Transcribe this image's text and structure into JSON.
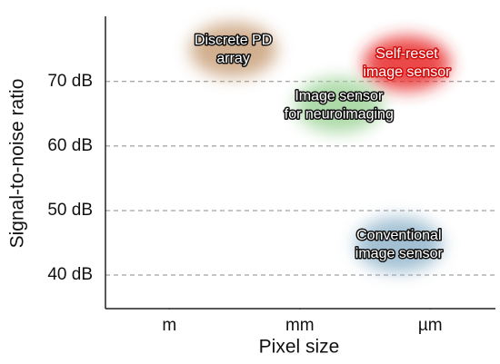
{
  "chart_data": {
    "type": "scatter",
    "x_label": "Pixel size",
    "y_label": "Signal-to-noise ratio",
    "xlim": [
      -0.49,
      2.5
    ],
    "ylim": [
      34.8,
      80.1
    ],
    "xticks": [
      {
        "value": 0,
        "label": "m"
      },
      {
        "value": 1,
        "label": "mm"
      },
      {
        "value": 2,
        "label": "µm"
      }
    ],
    "yticks": [
      {
        "value": 40,
        "label": "40 dB"
      },
      {
        "value": 50,
        "label": "50 dB"
      },
      {
        "value": 60,
        "label": "60 dB"
      },
      {
        "value": 70,
        "label": "70 dB"
      }
    ],
    "grid": true,
    "points": [
      {
        "label": [
          "Discrete PD",
          "array"
        ],
        "x": 0.49,
        "y": 74.9,
        "color": "#c9a07a"
      },
      {
        "label": [
          "Self-reset",
          "image sensor"
        ],
        "x": 1.82,
        "y": 72.8,
        "color": "#e82a2a"
      },
      {
        "label": [
          "Image sensor",
          "for neuroimaging"
        ],
        "x": 1.3,
        "y": 66.3,
        "color": "#9fd49a"
      },
      {
        "label": [
          "Conventional",
          "image sensor"
        ],
        "x": 1.76,
        "y": 44.7,
        "color": "#93b6cc"
      }
    ]
  }
}
